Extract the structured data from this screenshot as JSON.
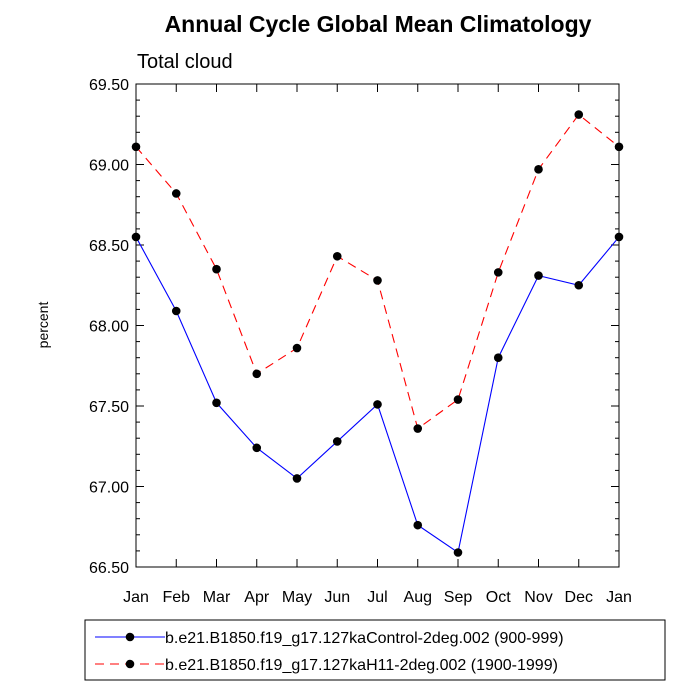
{
  "chart_data": {
    "type": "line",
    "title": "Annual Cycle Global Mean Climatology",
    "subtitle": "Total cloud",
    "xlabel": "",
    "ylabel": "percent",
    "ylim": [
      66.5,
      69.5
    ],
    "yticks": [
      66.5,
      67.0,
      67.5,
      68.0,
      68.5,
      69.0,
      69.5
    ],
    "ytick_labels": [
      "66.50",
      "67.00",
      "67.50",
      "68.00",
      "68.50",
      "69.00",
      "69.50"
    ],
    "categories": [
      "Jan",
      "Feb",
      "Mar",
      "Apr",
      "May",
      "Jun",
      "Jul",
      "Aug",
      "Sep",
      "Oct",
      "Nov",
      "Dec",
      "Jan"
    ],
    "grid": false,
    "legend_position": "bottom",
    "series": [
      {
        "name": "b.e21.B1850.f19_g17.127kaControl-2deg.002 (900-999)",
        "color": "#0000ff",
        "dash": "solid",
        "values": [
          68.55,
          68.09,
          67.52,
          67.24,
          67.05,
          67.28,
          67.51,
          66.76,
          66.59,
          67.8,
          68.31,
          68.25,
          68.55
        ]
      },
      {
        "name": "b.e21.B1850.f19_g17.127kaH11-2deg.002 (1900-1999)",
        "color": "#ff0000",
        "dash": "dashed",
        "values": [
          69.11,
          68.82,
          68.35,
          67.7,
          67.86,
          68.43,
          68.28,
          67.36,
          67.54,
          68.33,
          68.97,
          69.31,
          69.11
        ]
      }
    ]
  }
}
